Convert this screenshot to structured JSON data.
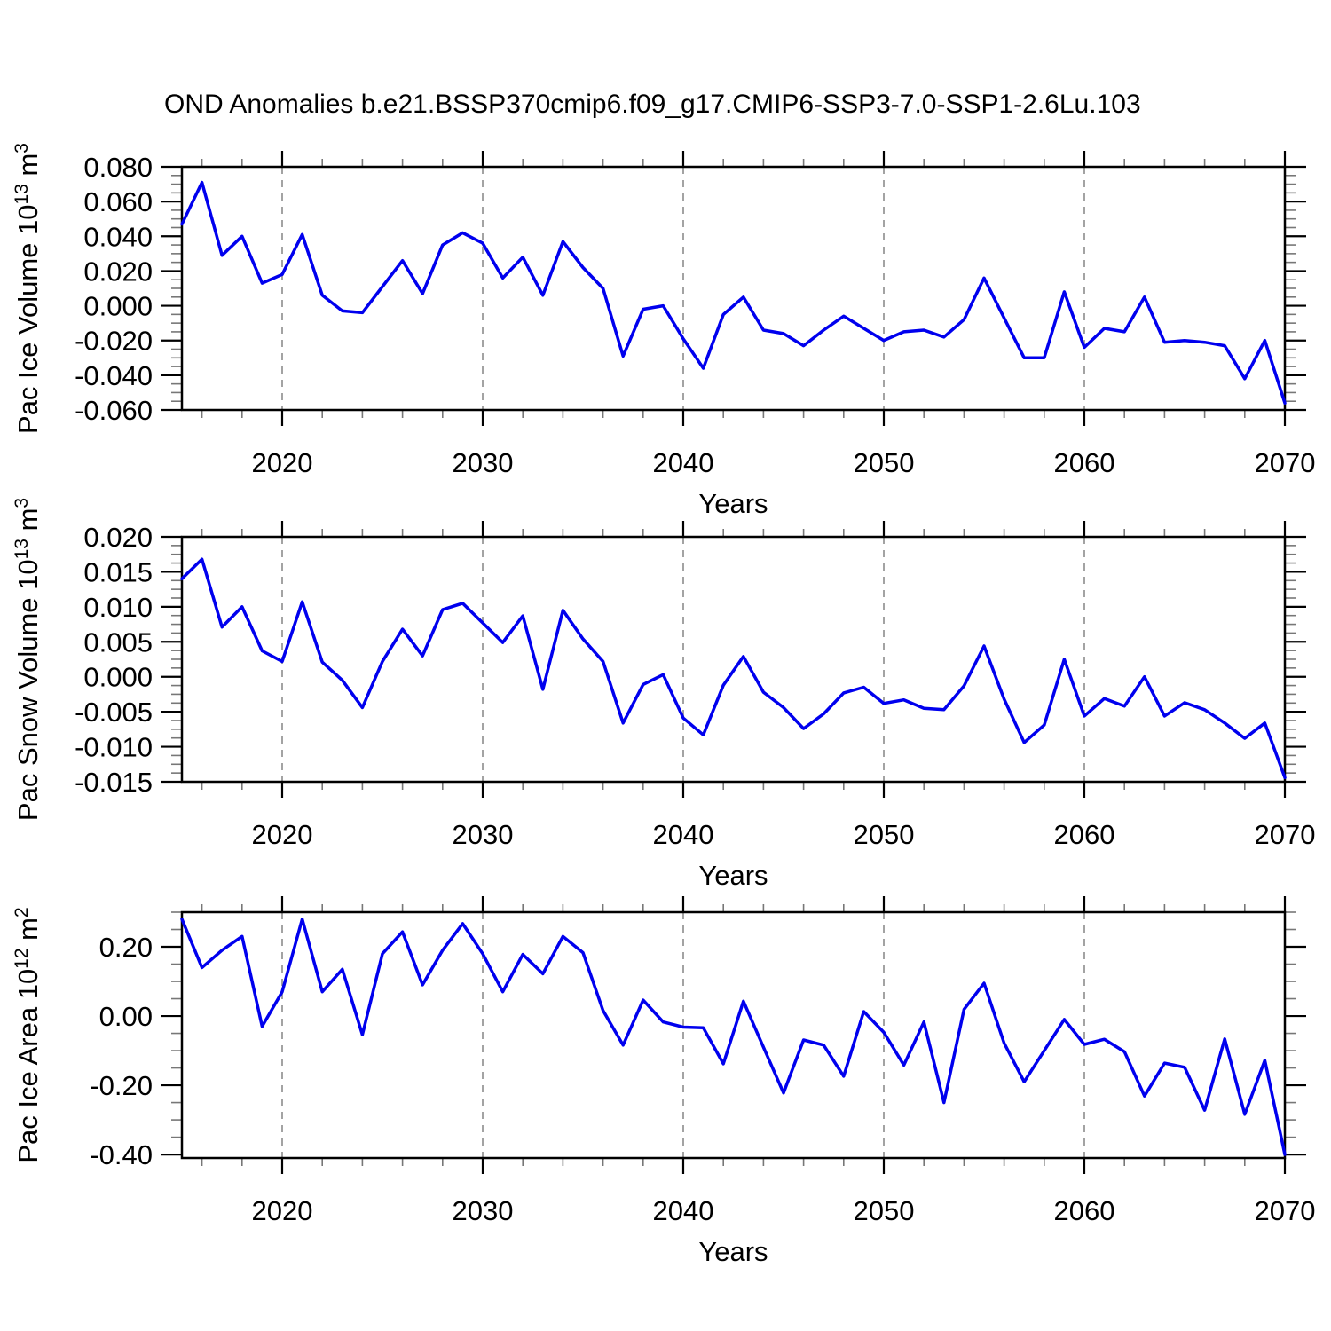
{
  "title": "OND Anomalies b.e21.BSSP370cmip6.f09_g17.CMIP6-SSP3-7.0-SSP1-2.6Lu.103",
  "style": {
    "line_color": "#0000ee",
    "grid_color": "#999999",
    "axis_color": "#000000",
    "minor_tick_color": "#777777"
  },
  "chart_data": [
    {
      "type": "line",
      "series_name": "Pac Ice Volume anomaly",
      "ylabel": "Pac Ice Volume 10^{13} m^{3}",
      "xlabel": "Years",
      "xlim": [
        2015,
        2070
      ],
      "ylim": [
        -0.06,
        0.08
      ],
      "xticks": [
        2020,
        2030,
        2040,
        2050,
        2060,
        2070
      ],
      "xtick_labels": [
        "2020",
        "2030",
        "2040",
        "2050",
        "2060",
        "2070"
      ],
      "x_minor_step": 2,
      "ytick_values": [
        0.08,
        0.06,
        0.04,
        0.02,
        0.0,
        -0.02,
        -0.04,
        -0.06
      ],
      "ytick_labels": [
        "0.080",
        "0.060",
        "0.040",
        "0.020",
        "0.000",
        "-0.020",
        "-0.040",
        "-0.060"
      ],
      "y_minor_step": 0.005,
      "gridlines_x": [
        2020,
        2030,
        2040,
        2050,
        2060
      ],
      "grid": "vertical-dashed",
      "x": [
        2015,
        2016,
        2017,
        2018,
        2019,
        2020,
        2021,
        2022,
        2023,
        2024,
        2025,
        2026,
        2027,
        2028,
        2029,
        2030,
        2031,
        2032,
        2033,
        2034,
        2035,
        2036,
        2037,
        2038,
        2039,
        2040,
        2041,
        2042,
        2043,
        2044,
        2045,
        2046,
        2047,
        2048,
        2049,
        2050,
        2051,
        2052,
        2053,
        2054,
        2055,
        2056,
        2057,
        2058,
        2059,
        2060,
        2061,
        2062,
        2063,
        2064,
        2065,
        2066,
        2067,
        2068,
        2069,
        2070
      ],
      "values": [
        0.047,
        0.071,
        0.029,
        0.04,
        0.013,
        0.018,
        0.041,
        0.006,
        -0.003,
        -0.004,
        0.011,
        0.026,
        0.007,
        0.035,
        0.042,
        0.036,
        0.016,
        0.028,
        0.006,
        0.037,
        0.022,
        0.01,
        -0.029,
        -0.002,
        0.0,
        -0.019,
        -0.036,
        -0.005,
        0.005,
        -0.014,
        -0.016,
        -0.023,
        -0.014,
        -0.006,
        -0.013,
        -0.02,
        -0.015,
        -0.014,
        -0.018,
        -0.008,
        0.016,
        -0.007,
        -0.03,
        -0.03,
        0.008,
        -0.024,
        -0.013,
        -0.015,
        0.005,
        -0.021,
        -0.02,
        -0.021,
        -0.023,
        -0.042,
        -0.02,
        -0.056
      ]
    },
    {
      "type": "line",
      "series_name": "Pac Snow Volume anomaly",
      "ylabel": "Pac Snow Volume 10^{13} m^{3}",
      "xlabel": "Years",
      "xlim": [
        2015,
        2070
      ],
      "ylim": [
        -0.015,
        0.02
      ],
      "xticks": [
        2020,
        2030,
        2040,
        2050,
        2060,
        2070
      ],
      "xtick_labels": [
        "2020",
        "2030",
        "2040",
        "2050",
        "2060",
        "2070"
      ],
      "x_minor_step": 2,
      "ytick_values": [
        0.02,
        0.015,
        0.01,
        0.005,
        0.0,
        -0.005,
        -0.01,
        -0.015
      ],
      "ytick_labels": [
        "0.020",
        "0.015",
        "0.010",
        "0.005",
        "0.000",
        "-0.005",
        "-0.010",
        "-0.015"
      ],
      "y_minor_step": 0.00125,
      "gridlines_x": [
        2020,
        2030,
        2040,
        2050,
        2060
      ],
      "grid": "vertical-dashed",
      "x": [
        2015,
        2016,
        2017,
        2018,
        2019,
        2020,
        2021,
        2022,
        2023,
        2024,
        2025,
        2026,
        2027,
        2028,
        2029,
        2030,
        2031,
        2032,
        2033,
        2034,
        2035,
        2036,
        2037,
        2038,
        2039,
        2040,
        2041,
        2042,
        2043,
        2044,
        2045,
        2046,
        2047,
        2048,
        2049,
        2050,
        2051,
        2052,
        2053,
        2054,
        2055,
        2056,
        2057,
        2058,
        2059,
        2060,
        2061,
        2062,
        2063,
        2064,
        2065,
        2066,
        2067,
        2068,
        2069,
        2070
      ],
      "values": [
        0.014,
        0.0168,
        0.0071,
        0.01,
        0.0037,
        0.0022,
        0.0107,
        0.0021,
        -0.0005,
        -0.0044,
        0.0022,
        0.0068,
        0.003,
        0.0096,
        0.0105,
        0.0077,
        0.0049,
        0.0087,
        -0.0018,
        0.0095,
        0.0054,
        0.0022,
        -0.0066,
        -0.0011,
        0.0003,
        -0.0059,
        -0.0083,
        -0.0012,
        0.0029,
        -0.0022,
        -0.0044,
        -0.0074,
        -0.0053,
        -0.0023,
        -0.0015,
        -0.0038,
        -0.0033,
        -0.0045,
        -0.0047,
        -0.0013,
        0.0044,
        -0.0032,
        -0.0094,
        -0.0069,
        0.0025,
        -0.0056,
        -0.0031,
        -0.0042,
        0.0,
        -0.0056,
        -0.0037,
        -0.0047,
        -0.0066,
        -0.0088,
        -0.0066,
        -0.0144
      ]
    },
    {
      "type": "line",
      "series_name": "Pac Ice Area anomaly",
      "ylabel": "Pac Ice Area 10^{12} m^{2}",
      "xlabel": "Years",
      "xlim": [
        2015,
        2070
      ],
      "ylim": [
        -0.41,
        0.3
      ],
      "xticks": [
        2020,
        2030,
        2040,
        2050,
        2060,
        2070
      ],
      "xtick_labels": [
        "2020",
        "2030",
        "2040",
        "2050",
        "2060",
        "2070"
      ],
      "x_minor_step": 2,
      "ytick_values": [
        0.2,
        0.0,
        -0.2,
        -0.4
      ],
      "ytick_labels": [
        "0.20",
        "0.00",
        "-0.20",
        "-0.40"
      ],
      "y_minor_step": 0.05,
      "gridlines_x": [
        2020,
        2030,
        2040,
        2050,
        2060
      ],
      "grid": "vertical-dashed",
      "x": [
        2015,
        2016,
        2017,
        2018,
        2019,
        2020,
        2021,
        2022,
        2023,
        2024,
        2025,
        2026,
        2027,
        2028,
        2029,
        2030,
        2031,
        2032,
        2033,
        2034,
        2035,
        2036,
        2037,
        2038,
        2039,
        2040,
        2041,
        2042,
        2043,
        2044,
        2045,
        2046,
        2047,
        2048,
        2049,
        2050,
        2051,
        2052,
        2053,
        2054,
        2055,
        2056,
        2057,
        2058,
        2059,
        2060,
        2061,
        2062,
        2063,
        2064,
        2065,
        2066,
        2067,
        2068,
        2069,
        2070
      ],
      "values": [
        0.28,
        0.14,
        0.19,
        0.23,
        -0.03,
        0.07,
        0.28,
        0.07,
        0.135,
        -0.054,
        0.18,
        0.243,
        0.09,
        0.19,
        0.267,
        0.18,
        0.07,
        0.178,
        0.122,
        0.23,
        0.183,
        0.016,
        -0.084,
        0.046,
        -0.017,
        -0.032,
        -0.034,
        -0.138,
        0.043,
        -0.09,
        -0.222,
        -0.069,
        -0.084,
        -0.174,
        0.013,
        -0.047,
        -0.142,
        -0.017,
        -0.25,
        0.019,
        0.095,
        -0.078,
        -0.19,
        -0.1,
        -0.01,
        -0.082,
        -0.067,
        -0.103,
        -0.231,
        -0.136,
        -0.148,
        -0.272,
        -0.066,
        -0.284,
        -0.128,
        -0.4
      ]
    }
  ]
}
